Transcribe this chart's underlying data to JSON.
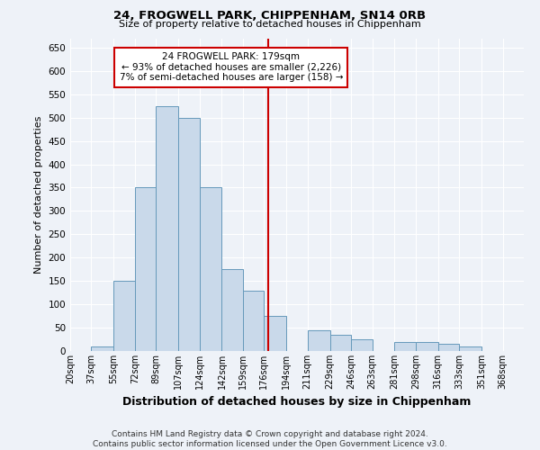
{
  "title": "24, FROGWELL PARK, CHIPPENHAM, SN14 0RB",
  "subtitle": "Size of property relative to detached houses in Chippenham",
  "xlabel": "Distribution of detached houses by size in Chippenham",
  "ylabel": "Number of detached properties",
  "footer_line1": "Contains HM Land Registry data © Crown copyright and database right 2024.",
  "footer_line2": "Contains public sector information licensed under the Open Government Licence v3.0.",
  "annotation_line1": "24 FROGWELL PARK: 179sqm",
  "annotation_line2": "← 93% of detached houses are smaller (2,226)",
  "annotation_line3": "7% of semi-detached houses are larger (158) →",
  "vline_x": 179,
  "bar_color": "#c9d9ea",
  "bar_edge_color": "#6699bb",
  "vline_color": "#cc0000",
  "annotation_box_color": "#cc0000",
  "background_color": "#eef2f8",
  "categories": [
    "20sqm",
    "37sqm",
    "55sqm",
    "72sqm",
    "89sqm",
    "107sqm",
    "124sqm",
    "142sqm",
    "159sqm",
    "176sqm",
    "194sqm",
    "211sqm",
    "229sqm",
    "246sqm",
    "263sqm",
    "281sqm",
    "298sqm",
    "316sqm",
    "333sqm",
    "351sqm",
    "368sqm"
  ],
  "bin_edges": [
    20,
    37,
    55,
    72,
    89,
    107,
    124,
    142,
    159,
    176,
    194,
    211,
    229,
    246,
    263,
    281,
    298,
    316,
    333,
    351,
    368,
    385
  ],
  "values": [
    0,
    10,
    150,
    350,
    525,
    500,
    350,
    175,
    130,
    75,
    0,
    45,
    35,
    25,
    0,
    20,
    20,
    15,
    10,
    0,
    0
  ],
  "ylim": [
    0,
    670
  ],
  "yticks": [
    0,
    50,
    100,
    150,
    200,
    250,
    300,
    350,
    400,
    450,
    500,
    550,
    600,
    650
  ],
  "title_fontsize": 9.5,
  "subtitle_fontsize": 8,
  "ylabel_fontsize": 8,
  "xlabel_fontsize": 9,
  "tick_fontsize": 7.5,
  "xtick_fontsize": 7,
  "footer_fontsize": 6.5,
  "annotation_fontsize": 7.5
}
